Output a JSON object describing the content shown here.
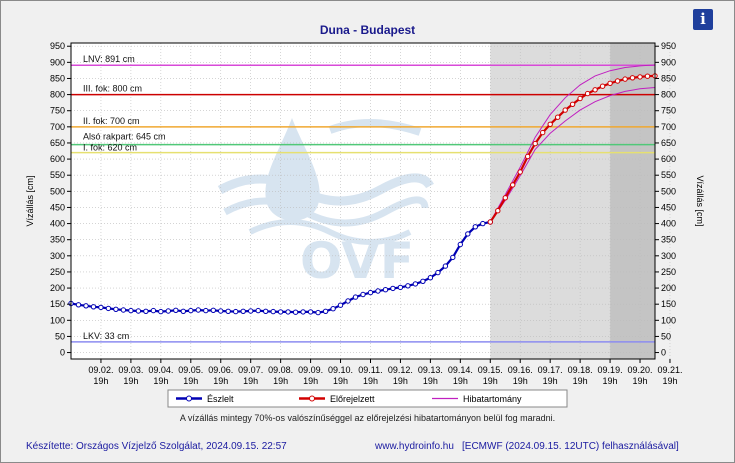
{
  "title": "Duna - Budapest",
  "info_icon": "i",
  "note": "A vízállás mintegy 70%-os valószínűséggel az előrejelzési hibatartományon belül fog maradni.",
  "footer": {
    "left": "Készítette: Országos Vízjelző Szolgálat, 2024.09.15. 22:57",
    "middle": "www.hydroinfo.hu",
    "right": "[ECMWF (2024.09.15. 12UTC) felhasználásával]"
  },
  "watermark": "OVF",
  "chart_data": {
    "type": "line",
    "title": "Duna - Budapest",
    "ylabel": "Vízállás [cm]",
    "ylabel_right": "Vízállás [cm]",
    "ylim": [
      -20,
      960
    ],
    "yticks": [
      0,
      50,
      100,
      150,
      200,
      250,
      300,
      350,
      400,
      450,
      500,
      550,
      600,
      650,
      700,
      750,
      800,
      850,
      900,
      950
    ],
    "xticks": [
      {
        "date": "09.02.",
        "time": "19h"
      },
      {
        "date": "09.03.",
        "time": "19h"
      },
      {
        "date": "09.04.",
        "time": "19h"
      },
      {
        "date": "09.05.",
        "time": "19h"
      },
      {
        "date": "09.06.",
        "time": "19h"
      },
      {
        "date": "09.07.",
        "time": "19h"
      },
      {
        "date": "09.08.",
        "time": "19h"
      },
      {
        "date": "09.09.",
        "time": "19h"
      },
      {
        "date": "09.10.",
        "time": "19h"
      },
      {
        "date": "09.11.",
        "time": "19h"
      },
      {
        "date": "09.12.",
        "time": "19h"
      },
      {
        "date": "09.13.",
        "time": "19h"
      },
      {
        "date": "09.14.",
        "time": "19h"
      },
      {
        "date": "09.15.",
        "time": "19h"
      },
      {
        "date": "09.16.",
        "time": "19h"
      },
      {
        "date": "09.17.",
        "time": "19h"
      },
      {
        "date": "09.18.",
        "time": "19h"
      },
      {
        "date": "09.19.",
        "time": "19h"
      },
      {
        "date": "09.20.",
        "time": "19h"
      },
      {
        "date": "09.21.",
        "time": "19h"
      }
    ],
    "thresholds": [
      {
        "label": "LNV: 891 cm",
        "value": 891,
        "color": "#d84ad8"
      },
      {
        "label": "III. fok: 800 cm",
        "value": 800,
        "color": "#cc0000"
      },
      {
        "label": "II. fok: 700 cm",
        "value": 700,
        "color": "#f0a830"
      },
      {
        "label": "Alsó rakpart: 645 cm",
        "value": 645,
        "color": "#50c878"
      },
      {
        "label": "I. fok: 620 cm",
        "value": 620,
        "color": "#e6e070"
      },
      {
        "label": "LKV: 33 cm",
        "value": 33,
        "color": "#8c8cf0"
      }
    ],
    "series": [
      {
        "name": "Észlelt",
        "color": "#0000b4",
        "points": [
          [
            "09.01. 19h",
            152
          ],
          [
            "09.02. 01h",
            148
          ],
          [
            "09.02. 07h",
            145
          ],
          [
            "09.02. 13h",
            142
          ],
          [
            "09.02. 19h",
            140
          ],
          [
            "09.03. 01h",
            137
          ],
          [
            "09.03. 07h",
            134
          ],
          [
            "09.03. 13h",
            132
          ],
          [
            "09.03. 19h",
            130
          ],
          [
            "09.04. 01h",
            129
          ],
          [
            "09.04. 07h",
            128
          ],
          [
            "09.04. 13h",
            130
          ],
          [
            "09.04. 19h",
            127
          ],
          [
            "09.05. 01h",
            129
          ],
          [
            "09.05. 07h",
            131
          ],
          [
            "09.05. 13h",
            128
          ],
          [
            "09.05. 19h",
            130
          ],
          [
            "09.06. 01h",
            132
          ],
          [
            "09.06. 07h",
            130
          ],
          [
            "09.06. 13h",
            131
          ],
          [
            "09.06. 19h",
            129
          ],
          [
            "09.07. 01h",
            128
          ],
          [
            "09.07. 07h",
            127
          ],
          [
            "09.07. 13h",
            128
          ],
          [
            "09.07. 19h",
            129
          ],
          [
            "09.08. 01h",
            130
          ],
          [
            "09.08. 07h",
            128
          ],
          [
            "09.08. 13h",
            127
          ],
          [
            "09.08. 19h",
            126
          ],
          [
            "09.09. 01h",
            126
          ],
          [
            "09.09. 07h",
            125
          ],
          [
            "09.09. 13h",
            126
          ],
          [
            "09.09. 19h",
            126
          ],
          [
            "09.10. 01h",
            124
          ],
          [
            "09.10. 07h",
            128
          ],
          [
            "09.10. 13h",
            136
          ],
          [
            "09.10. 19h",
            147
          ],
          [
            "09.11. 01h",
            160
          ],
          [
            "09.11. 07h",
            172
          ],
          [
            "09.11. 13h",
            180
          ],
          [
            "09.11. 19h",
            186
          ],
          [
            "09.12. 01h",
            191
          ],
          [
            "09.12. 07h",
            195
          ],
          [
            "09.12. 13h",
            199
          ],
          [
            "09.12. 19h",
            202
          ],
          [
            "09.13. 01h",
            207
          ],
          [
            "09.13. 07h",
            213
          ],
          [
            "09.13. 13h",
            221
          ],
          [
            "09.13. 19h",
            232
          ],
          [
            "09.14. 01h",
            248
          ],
          [
            "09.14. 07h",
            268
          ],
          [
            "09.14. 13h",
            295
          ],
          [
            "09.14. 19h",
            335
          ],
          [
            "09.15. 01h",
            368
          ],
          [
            "09.15. 07h",
            390
          ],
          [
            "09.15. 13h",
            400
          ],
          [
            "09.15. 19h",
            405
          ]
        ]
      },
      {
        "name": "Előrejelzett",
        "color": "#d20000",
        "points": [
          [
            "09.15. 19h",
            405
          ],
          [
            "09.16. 01h",
            440
          ],
          [
            "09.16. 07h",
            480
          ],
          [
            "09.16. 13h",
            520
          ],
          [
            "09.16. 19h",
            560
          ],
          [
            "09.17. 01h",
            608
          ],
          [
            "09.17. 07h",
            648
          ],
          [
            "09.17. 13h",
            682
          ],
          [
            "09.17. 19h",
            708
          ],
          [
            "09.18. 01h",
            730
          ],
          [
            "09.18. 07h",
            752
          ],
          [
            "09.18. 13h",
            770
          ],
          [
            "09.18. 19h",
            788
          ],
          [
            "09.19. 01h",
            803
          ],
          [
            "09.19. 07h",
            815
          ],
          [
            "09.19. 13h",
            826
          ],
          [
            "09.19. 19h",
            835
          ],
          [
            "09.20. 01h",
            842
          ],
          [
            "09.20. 07h",
            848
          ],
          [
            "09.20. 13h",
            852
          ],
          [
            "09.20. 19h",
            855
          ],
          [
            "09.21. 01h",
            857
          ],
          [
            "09.21. 07h",
            858
          ]
        ]
      },
      {
        "name": "Hibatartomány",
        "color": "#c020c0",
        "upper": [
          [
            "09.15. 19h",
            405
          ],
          [
            "09.16. 07h",
            490
          ],
          [
            "09.16. 19h",
            575
          ],
          [
            "09.17. 07h",
            668
          ],
          [
            "09.17. 19h",
            738
          ],
          [
            "09.18. 07h",
            790
          ],
          [
            "09.18. 19h",
            830
          ],
          [
            "09.19. 07h",
            858
          ],
          [
            "09.19. 19h",
            874
          ],
          [
            "09.20. 07h",
            884
          ],
          [
            "09.20. 19h",
            889
          ],
          [
            "09.21. 07h",
            892
          ]
        ],
        "lower": [
          [
            "09.15. 19h",
            405
          ],
          [
            "09.16. 07h",
            472
          ],
          [
            "09.16. 19h",
            548
          ],
          [
            "09.17. 07h",
            630
          ],
          [
            "09.17. 19h",
            680
          ],
          [
            "09.18. 07h",
            718
          ],
          [
            "09.18. 19h",
            752
          ],
          [
            "09.19. 07h",
            778
          ],
          [
            "09.19. 19h",
            797
          ],
          [
            "09.20. 07h",
            810
          ],
          [
            "09.20. 19h",
            818
          ],
          [
            "09.21. 07h",
            822
          ]
        ]
      }
    ],
    "legend": [
      {
        "label": "Észlelt",
        "color": "#0000b4",
        "marker": true
      },
      {
        "label": "Előrejelzett",
        "color": "#d20000",
        "marker": true
      },
      {
        "label": "Hibatartomány",
        "color": "#c020c0",
        "marker": false
      }
    ],
    "legend_placement": "bottom",
    "background_regions": [
      {
        "from": "09.15. 19h",
        "to": "09.19. 19h",
        "color": "#dcdcdc"
      },
      {
        "from": "09.19. 19h",
        "to": "09.21. 07h",
        "color": "#c4c4c4"
      }
    ],
    "grid": true
  }
}
